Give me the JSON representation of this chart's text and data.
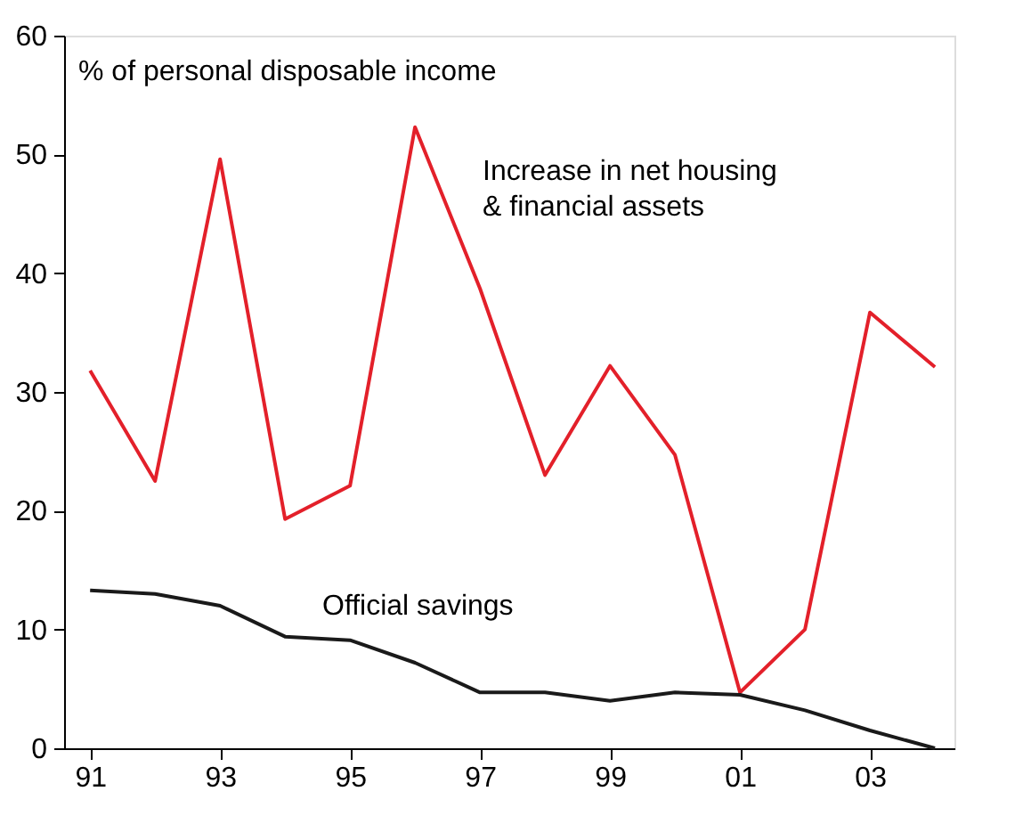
{
  "chart_data": {
    "type": "line",
    "ylabel": "% of personal disposable income",
    "categories": [
      "91",
      null,
      "93",
      null,
      "95",
      null,
      "97",
      null,
      "99",
      null,
      "01",
      null,
      "03",
      null
    ],
    "series": [
      {
        "name": "Increase in net housing & financial assets",
        "color": "#e3202a",
        "values": [
          31.8,
          22.5,
          49.6,
          19.3,
          22.1,
          52.3,
          38.7,
          23.0,
          32.2,
          24.7,
          4.7,
          10.0,
          36.7,
          32.1
        ]
      },
      {
        "name": "Official savings",
        "color": "#1a1a1a",
        "values": [
          13.3,
          13.0,
          12.0,
          9.4,
          9.1,
          7.2,
          4.7,
          4.7,
          4.0,
          4.7,
          4.5,
          3.2,
          1.5,
          0
        ]
      }
    ],
    "ylim": [
      0,
      60
    ],
    "yticks": [
      0,
      10,
      20,
      30,
      40,
      50,
      60
    ],
    "marker": "none",
    "line_style": "solid"
  }
}
